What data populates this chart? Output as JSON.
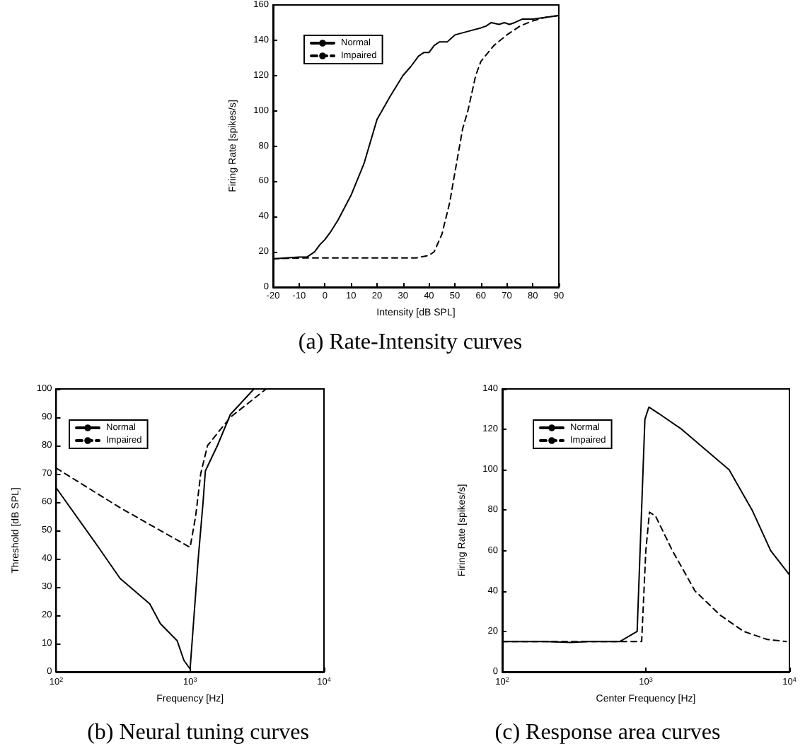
{
  "chart_data": [
    {
      "type": "line",
      "title": "(a) Rate-Intensity curves",
      "xlabel": "Intensity [dB SPL]",
      "ylabel": "Firing Rate [spikes/s]",
      "xlim": [
        -20,
        90
      ],
      "xticks": [
        -20,
        -10,
        0,
        10,
        20,
        30,
        40,
        50,
        60,
        70,
        80,
        90
      ],
      "ylim": [
        0,
        160
      ],
      "yticks": [
        0,
        20,
        40,
        60,
        80,
        100,
        120,
        140,
        160
      ],
      "grid": false,
      "legend": "top left",
      "series": [
        {
          "name": "Normal",
          "color": "#000000",
          "line_style": "solid",
          "x": [
            -20,
            -10,
            -7,
            -4,
            -2,
            0,
            2,
            5,
            10,
            15,
            20,
            25,
            30,
            33,
            36,
            38,
            40,
            42,
            44,
            47,
            50,
            55,
            60,
            62,
            64,
            67,
            69,
            71,
            73,
            76,
            80,
            85,
            90
          ],
          "values": [
            16,
            17,
            17,
            20,
            24,
            27,
            31,
            38,
            52,
            70,
            95,
            108,
            120,
            125,
            131,
            133,
            133,
            137,
            139,
            139,
            143,
            145,
            147,
            148,
            150,
            149,
            150,
            149,
            150,
            152,
            152,
            153,
            154
          ]
        },
        {
          "name": "Impaired",
          "color": "#000000",
          "line_style": "dashed",
          "x": [
            -20,
            -10,
            0,
            10,
            20,
            30,
            35,
            40,
            42,
            45,
            48,
            50,
            53,
            55,
            58,
            60,
            65,
            70,
            75,
            80,
            85,
            90
          ],
          "values": [
            16,
            16.5,
            16.5,
            16.5,
            16.5,
            16.5,
            16.5,
            18,
            20,
            30,
            48,
            65,
            90,
            100,
            120,
            128,
            137,
            143,
            148,
            151,
            153,
            154
          ]
        }
      ]
    },
    {
      "type": "line",
      "title": "(b) Neural tuning curves",
      "xlabel": "Frequency [Hz]",
      "ylabel": "Threshold [dB SPL]",
      "log": "x",
      "xlim": [
        100,
        10000
      ],
      "xticks": [
        {
          "value": 100,
          "label": "10$^{2}$"
        },
        {
          "value": 1000,
          "label": "10$^{3}$"
        },
        {
          "value": 10000,
          "label": "10$^{4}$"
        }
      ],
      "ylim": [
        0,
        100
      ],
      "yticks": [
        0,
        10,
        20,
        30,
        40,
        50,
        60,
        70,
        80,
        90,
        100
      ],
      "grid": false,
      "legend": "top left",
      "series": [
        {
          "name": "Normal",
          "color": "#000000",
          "line_style": "solid",
          "x": [
            100,
            200,
            300,
            500,
            600,
            800,
            900,
            1000,
            1150,
            1250,
            1300,
            1600,
            2000,
            3000
          ],
          "values": [
            65,
            45,
            33,
            24,
            17,
            11,
            4,
            1,
            40,
            60,
            71,
            80,
            91,
            100
          ]
        },
        {
          "name": "Impaired",
          "color": "#000000",
          "line_style": "dashed",
          "x": [
            100,
            300,
            1000,
            1100,
            1200,
            1350,
            2000,
            3700
          ],
          "values": [
            72,
            58,
            44,
            55,
            70,
            80,
            90,
            100
          ]
        }
      ]
    },
    {
      "type": "line",
      "title": "(c) Response area curves",
      "xlabel": "Center Frequency [Hz]",
      "ylabel": "Firing Rate [spikes/s]",
      "log": "x",
      "xlim": [
        100,
        10000
      ],
      "xticks": [
        {
          "value": 100,
          "label": "10$^{2}$"
        },
        {
          "value": 1000,
          "label": "10$^{3}$"
        },
        {
          "value": 10000,
          "label": "10$^{4}$"
        }
      ],
      "ylim": [
        0,
        140
      ],
      "yticks": [
        0,
        20,
        40,
        60,
        80,
        100,
        120,
        140
      ],
      "grid": false,
      "legend": "top left",
      "series": [
        {
          "name": "Normal",
          "color": "#000000",
          "line_style": "solid",
          "x": [
            100,
            200,
            300,
            400,
            500,
            660,
            870,
            985,
            1050,
            1220,
            1780,
            2600,
            3800,
            5500,
            7400,
            10000
          ],
          "values": [
            15,
            15,
            14.5,
            15,
            15,
            15,
            20,
            125,
            131,
            128,
            120,
            110,
            100,
            80,
            60,
            48
          ]
        },
        {
          "name": "Impaired",
          "color": "#000000",
          "line_style": "dashed",
          "x": [
            100,
            300,
            500,
            935,
            1000,
            1060,
            1170,
            1530,
            2200,
            3300,
            4800,
            7000,
            9500
          ],
          "values": [
            15,
            15,
            15,
            15,
            60,
            79,
            77,
            60,
            40,
            28,
            20,
            16,
            15
          ]
        }
      ]
    }
  ]
}
